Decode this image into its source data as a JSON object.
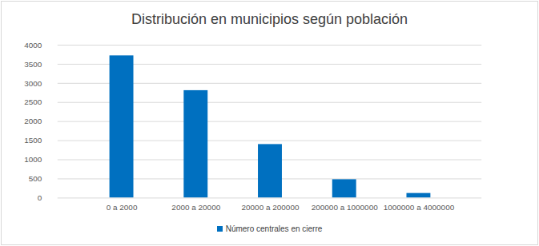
{
  "chart_data": {
    "type": "bar",
    "title": "Distribución en municipios según población",
    "categories": [
      "0 a 2000",
      "2000 a 20000",
      "20000 a 200000",
      "200000 a 1000000",
      "1000000 a 4000000"
    ],
    "series": [
      {
        "name": "Número centrales en cierre",
        "color": "#0070c0",
        "values": [
          3720,
          2810,
          1400,
          480,
          120
        ]
      }
    ],
    "ylim": [
      0,
      4000
    ],
    "yticks": [
      0,
      500,
      1000,
      1500,
      2000,
      2500,
      3000,
      3500,
      4000
    ],
    "grid": true,
    "legend": "bottom"
  }
}
